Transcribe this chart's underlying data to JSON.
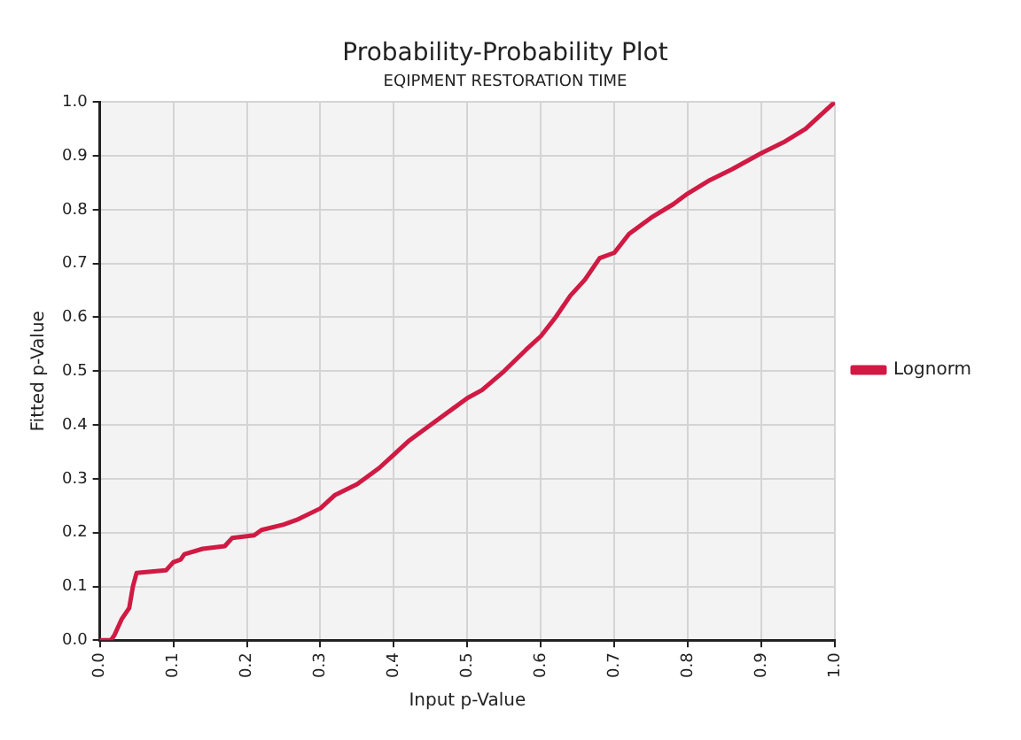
{
  "chart_data": {
    "type": "line",
    "title": "Probability-Probability Plot",
    "subtitle": "EQIPMENT RESTORATION TIME",
    "xlabel": "Input p-Value",
    "ylabel": "Fitted p-Value",
    "xlim": [
      0,
      1
    ],
    "ylim": [
      0,
      1
    ],
    "xticks": [
      {
        "value": 0,
        "label": "0.0"
      },
      0.1,
      0.2,
      0.3,
      0.4,
      0.5,
      0.6,
      0.7,
      0.8,
      0.9,
      {
        "value": 1,
        "label": "1.0"
      }
    ],
    "yticks": [
      {
        "value": 0,
        "label": "0.0"
      },
      0.1,
      0.2,
      0.3,
      0.4,
      0.5,
      0.6,
      0.7,
      0.8,
      0.9,
      {
        "value": 1,
        "label": "1.0"
      }
    ],
    "grid": true,
    "legend": "right",
    "marker": "none",
    "line_style": "solid",
    "series": [
      {
        "name": "Lognorm",
        "color": "#d01a44",
        "x": [
          0,
          0.015,
          0.02,
          0.03,
          0.04,
          0.045,
          0.05,
          0.09,
          0.1,
          0.11,
          0.115,
          0.14,
          0.17,
          0.18,
          0.21,
          0.22,
          0.25,
          0.27,
          0.3,
          0.32,
          0.35,
          0.38,
          0.4,
          0.42,
          0.45,
          0.48,
          0.5,
          0.52,
          0.55,
          0.58,
          0.6,
          0.62,
          0.64,
          0.66,
          0.68,
          0.7,
          0.72,
          0.75,
          0.78,
          0.8,
          0.83,
          0.86,
          0.9,
          0.93,
          0.96,
          0.98,
          1
        ],
        "values": [
          0,
          0,
          0.01,
          0.04,
          0.06,
          0.1,
          0.125,
          0.13,
          0.145,
          0.15,
          0.16,
          0.17,
          0.175,
          0.19,
          0.195,
          0.205,
          0.215,
          0.225,
          0.245,
          0.27,
          0.29,
          0.32,
          0.345,
          0.37,
          0.4,
          0.43,
          0.45,
          0.465,
          0.5,
          0.54,
          0.565,
          0.6,
          0.64,
          0.67,
          0.71,
          0.72,
          0.755,
          0.785,
          0.81,
          0.83,
          0.855,
          0.875,
          0.905,
          0.925,
          0.95,
          0.975,
          1
        ]
      }
    ]
  }
}
